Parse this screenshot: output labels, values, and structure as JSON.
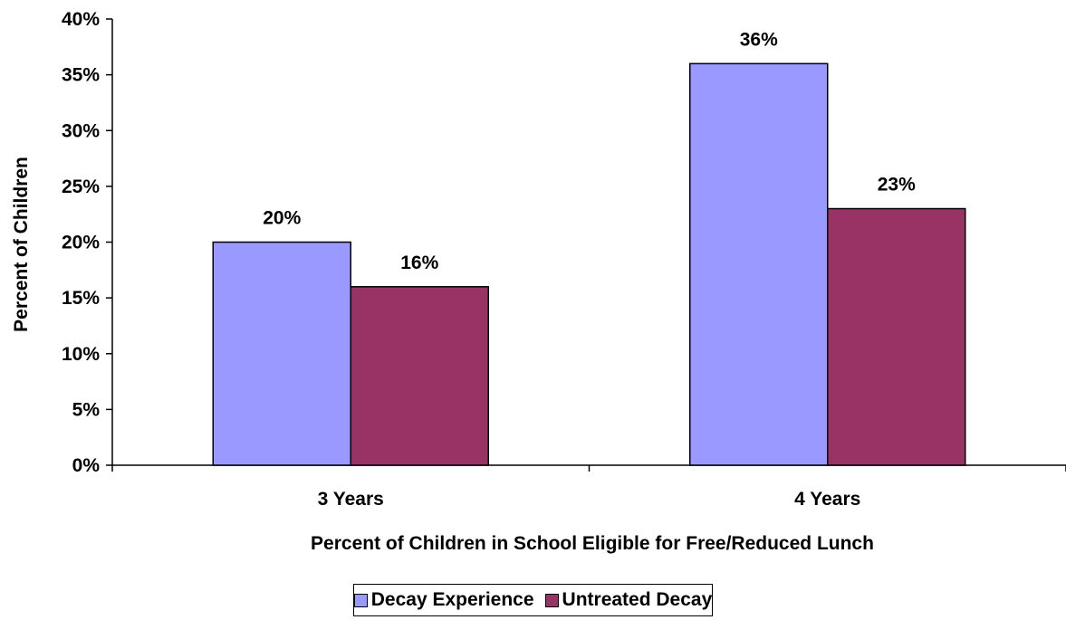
{
  "chart_data": {
    "type": "bar",
    "categories": [
      "3 Years",
      "4 Years"
    ],
    "series": [
      {
        "name": "Decay Experience",
        "values": [
          20,
          36
        ],
        "labels": [
          "20%",
          "36%"
        ],
        "color": "#9999FF"
      },
      {
        "name": "Untreated Decay",
        "values": [
          16,
          23
        ],
        "labels": [
          "16%",
          "23%"
        ],
        "color": "#993366"
      }
    ],
    "title": "",
    "xlabel": "Percent of Children in School Eligible for Free/Reduced Lunch",
    "ylabel": "Percent of Children",
    "ylim": [
      0,
      40
    ],
    "yticks": [
      0,
      5,
      10,
      15,
      20,
      25,
      30,
      35,
      40
    ],
    "ytick_labels": [
      "0%",
      "5%",
      "10%",
      "15%",
      "20%",
      "25%",
      "30%",
      "35%",
      "40%"
    ],
    "grid": false,
    "legend_position": "bottom"
  }
}
